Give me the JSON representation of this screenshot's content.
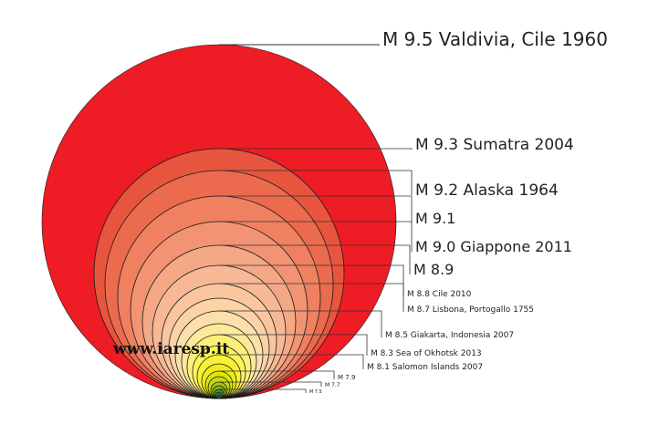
{
  "watermark": "www.iaresp.it",
  "quakes": [
    {
      "label": "M 9.5 Valdivia, Cile 1960",
      "color": "#ee1c25"
    },
    {
      "label": "M 9.3 Sumatra 2004",
      "color": "#e8553f"
    },
    {
      "label": "M 9.2 Alaska 1964",
      "color": "#ec6a4d"
    },
    {
      "label": "M 9.1",
      "color": "#ef8060"
    },
    {
      "label": "M 9.0 Giappone 2011",
      "color": "#f29473"
    },
    {
      "label": "M 8.9",
      "color": "#f5a886"
    },
    {
      "label": "M 8.8 Cile 2010",
      "color": "#f7b896"
    },
    {
      "label": "M 8.7 Lisbona, Portogallo 1755",
      "color": "#f9c6a0"
    },
    {
      "label": "",
      "color": "#fbd3a6"
    },
    {
      "label": "M 8.5 Giakarta, Indonesia 2007",
      "color": "#fcdfaa"
    },
    {
      "label": "",
      "color": "#fde99a"
    },
    {
      "label": "M 8.3 Sea of Okhotsk 2013",
      "color": "#fdf07a"
    },
    {
      "label": "",
      "color": "#fef45a"
    },
    {
      "label": "M 8.1 Salomon Islands 2007",
      "color": "#f7f036"
    },
    {
      "label": "",
      "color": "#eeec1a"
    },
    {
      "label": "M 7.9",
      "color": "#dfe40c"
    },
    {
      "label": "",
      "color": "#c6d80e"
    },
    {
      "label": "M 7.7",
      "color": "#a6c814"
    },
    {
      "label": "",
      "color": "#7fb21c"
    },
    {
      "label": "M 7.5",
      "color": "#4f9a2e"
    },
    {
      "label": "",
      "color": "#2b7f3c"
    },
    {
      "label": "",
      "color": "#1b6640"
    }
  ]
}
